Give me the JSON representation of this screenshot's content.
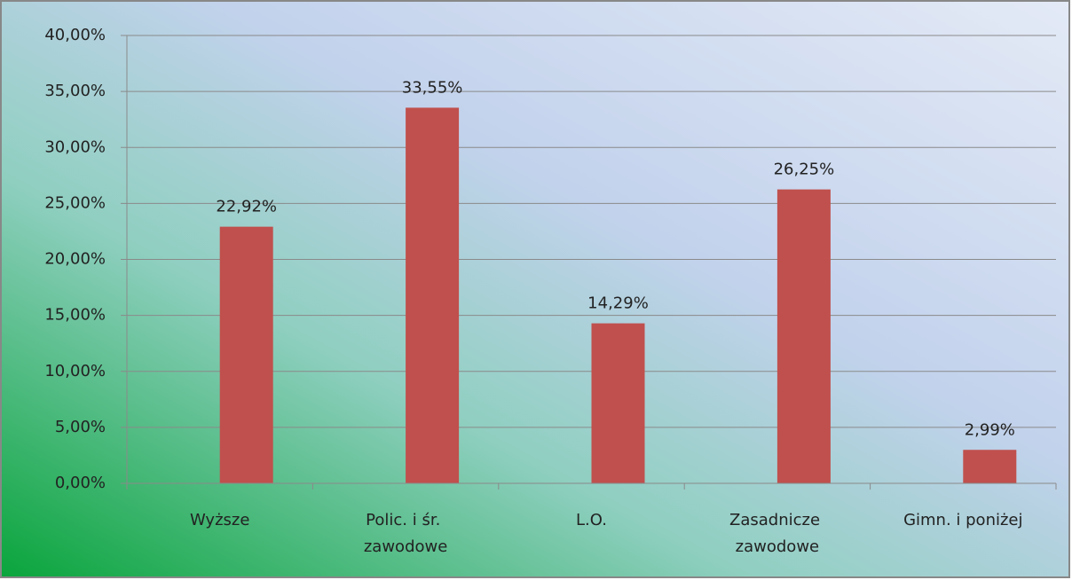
{
  "chart_data": {
    "type": "bar",
    "categories": [
      "Wyższe",
      "Polic. i śr. zawodowe",
      "L.O.",
      "Zasadnicze zawodowe",
      "Gimn. i poniżej"
    ],
    "values": [
      22.92,
      33.55,
      14.29,
      26.25,
      2.99
    ],
    "value_labels": [
      "22,92%",
      "33,55%",
      "14,29%",
      "26,25%",
      "2,99%"
    ],
    "color": "#c0504d",
    "ylim": [
      0,
      40
    ],
    "yticks": [
      {
        "value": 0,
        "label": "0,00%"
      },
      {
        "value": 5,
        "label": "5,00%"
      },
      {
        "value": 10,
        "label": "10,00%"
      },
      {
        "value": 15,
        "label": "15,00%"
      },
      {
        "value": 20,
        "label": "20,00%"
      },
      {
        "value": 25,
        "label": "25,00%"
      },
      {
        "value": 30,
        "label": "30,00%"
      },
      {
        "value": 35,
        "label": "35,00%"
      },
      {
        "value": 40,
        "label": "40,00%"
      }
    ],
    "grid": true
  }
}
